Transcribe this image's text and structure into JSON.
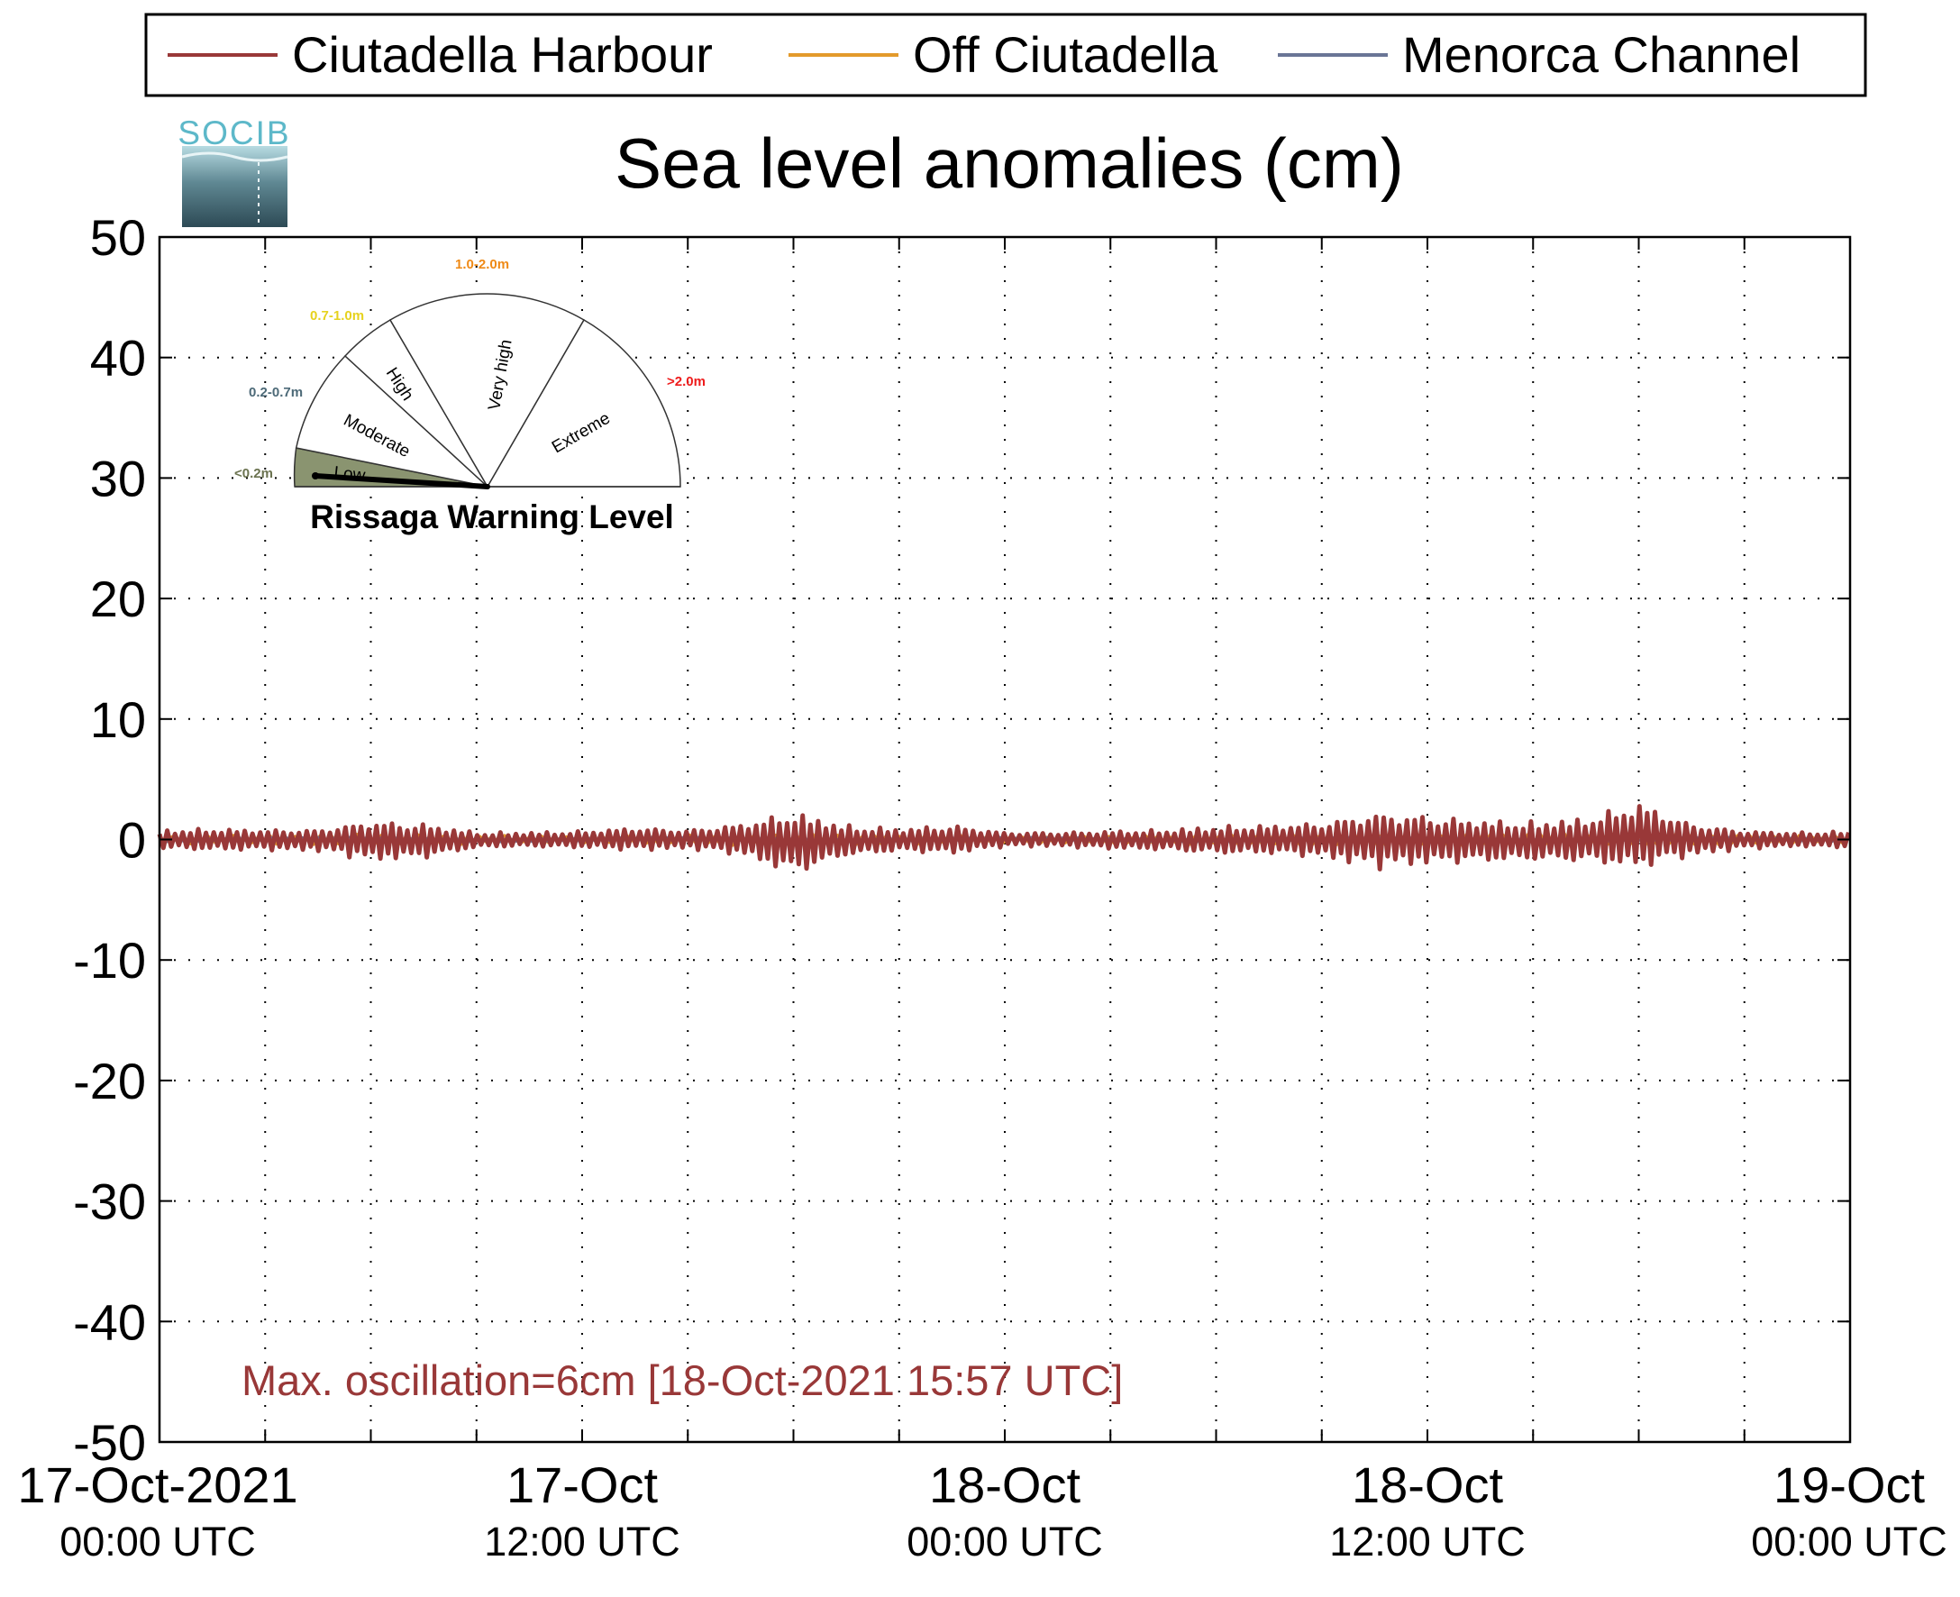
{
  "logo": {
    "text": "SOCIB"
  },
  "legend": [
    {
      "name": "Ciutadella Harbour",
      "color": "#993838"
    },
    {
      "name": "Off Ciutadella",
      "color": "#e39a2b"
    },
    {
      "name": "Menorca Channel",
      "color": "#6a7596"
    }
  ],
  "gauge": {
    "title": "Rissaga Warning Level",
    "current_level": "Low",
    "sectors": [
      {
        "name": "Low",
        "range": "<0.2m",
        "range_color": "#6b7350",
        "fill": "#8a9470",
        "active": true
      },
      {
        "name": "Moderate",
        "range": "0.2-0.7m",
        "range_color": "#4d6a78",
        "fill": "#ffffff",
        "active": false
      },
      {
        "name": "High",
        "range": "0.7-1.0m",
        "range_color": "#e6d21e",
        "fill": "#ffffff",
        "active": false
      },
      {
        "name": "Very high",
        "range": "1.0-2.0m",
        "range_color": "#ef8a16",
        "fill": "#ffffff",
        "active": false
      },
      {
        "name": "Extreme",
        "range": ">2.0m",
        "range_color": "#ee1c1c",
        "fill": "#ffffff",
        "active": false
      }
    ]
  },
  "annotation": {
    "text": "Max. oscillation=6cm [18-Oct-2021 15:57 UTC]",
    "color": "#993838"
  },
  "chart_data": {
    "type": "line",
    "title": "Sea level anomalies (cm)",
    "xlabel": "",
    "ylabel": "",
    "xlim": [
      "17-Oct-2021 00:00 UTC",
      "19-Oct-2021 00:00 UTC"
    ],
    "ylim": [
      -50,
      50
    ],
    "yticks": [
      50,
      40,
      30,
      20,
      10,
      0,
      -10,
      -20,
      -30,
      -40,
      -50
    ],
    "xticks": [
      {
        "line1": "17-Oct-2021",
        "line2": "00:00 UTC"
      },
      {
        "line1": "17-Oct",
        "line2": "12:00 UTC"
      },
      {
        "line1": "18-Oct",
        "line2": "00:00 UTC"
      },
      {
        "line1": "18-Oct",
        "line2": "12:00 UTC"
      },
      {
        "line1": "19-Oct",
        "line2": "00:00 UTC"
      }
    ],
    "grid": true,
    "legend_position": "top",
    "series": [
      {
        "name": "Ciutadella Harbour",
        "color": "#993838",
        "x_hours": [
          0,
          1.5,
          3,
          4.5,
          6,
          7.5,
          9,
          10.5,
          12,
          13.5,
          15,
          16.5,
          18,
          19.5,
          21,
          22.5,
          24,
          25.5,
          27,
          28.5,
          30,
          31.5,
          33,
          34.5,
          36,
          37.5,
          39,
          40.5,
          42,
          43.5,
          45,
          46.5,
          48
        ],
        "y_min": [
          -0.8,
          -0.9,
          -0.9,
          -1.0,
          -1.8,
          -1.6,
          -0.7,
          -0.6,
          -0.7,
          -0.9,
          -0.8,
          -1.3,
          -3.0,
          -1.4,
          -1.0,
          -1.2,
          -0.6,
          -0.6,
          -0.8,
          -0.9,
          -1.2,
          -1.2,
          -1.5,
          -2.5,
          -2.1,
          -1.9,
          -1.8,
          -1.9,
          -2.4,
          -1.4,
          -0.8,
          -0.6,
          -0.7
        ],
        "y_max": [
          0.8,
          0.9,
          0.8,
          0.8,
          1.5,
          1.3,
          0.6,
          0.6,
          0.7,
          1.0,
          0.8,
          1.3,
          2.3,
          1.2,
          0.9,
          1.2,
          0.6,
          0.6,
          0.7,
          0.8,
          1.1,
          1.2,
          1.4,
          2.2,
          2.0,
          1.6,
          1.5,
          1.8,
          3.2,
          1.3,
          0.7,
          0.6,
          0.7
        ]
      },
      {
        "name": "Off Ciutadella",
        "color": "#e39a2b",
        "x_hours": [
          0,
          6,
          12,
          18,
          24,
          30,
          36,
          42,
          48
        ],
        "y_min": [
          -0.4,
          -0.5,
          -0.3,
          -0.6,
          -0.3,
          -0.5,
          -0.6,
          -0.6,
          -0.3
        ],
        "y_max": [
          0.3,
          0.5,
          0.3,
          0.5,
          0.3,
          0.4,
          0.5,
          0.6,
          0.3
        ]
      },
      {
        "name": "Menorca Channel",
        "color": "#6a7596",
        "x_hours": [
          0,
          6,
          12,
          18,
          24,
          30,
          36,
          42,
          48
        ],
        "y_min": [
          -0.2,
          -0.2,
          -0.2,
          -0.2,
          -0.2,
          -0.2,
          -0.2,
          -0.2,
          -0.2
        ],
        "y_max": [
          0.2,
          0.2,
          0.2,
          0.2,
          0.2,
          0.2,
          0.2,
          0.2,
          0.2
        ]
      }
    ]
  }
}
